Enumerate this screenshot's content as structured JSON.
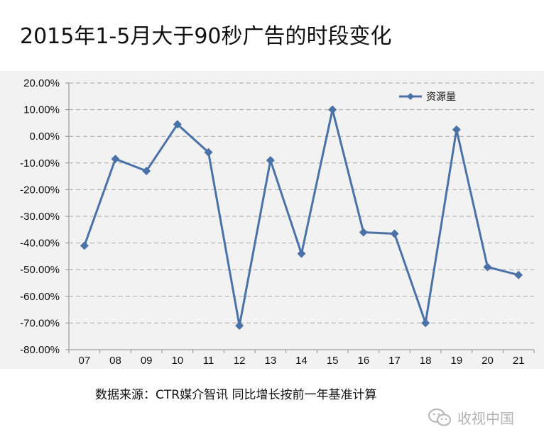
{
  "page": {
    "title": "2015年1-5月大于90秒广告的时段变化",
    "source_note": "数据来源：CTR媒介智讯   同比增长按前一年基准计算",
    "watermark": "收视中国"
  },
  "chart_data": {
    "type": "line",
    "title": "2015年1-5月大于90秒广告的时段变化",
    "xlabel": "",
    "ylabel": "",
    "categories": [
      "07",
      "08",
      "09",
      "10",
      "11",
      "12",
      "13",
      "14",
      "15",
      "16",
      "17",
      "18",
      "19",
      "20",
      "21"
    ],
    "series": [
      {
        "name": "资源量",
        "values": [
          -41.0,
          -8.5,
          -13.0,
          4.5,
          -6.0,
          -71.0,
          -9.0,
          -44.0,
          10.0,
          -36.0,
          -36.5,
          -70.0,
          2.5,
          -49.0,
          -52.0
        ],
        "color": "#4a72a8"
      }
    ],
    "ylim": [
      -80,
      20
    ],
    "yticks": [
      20,
      10,
      0,
      -10,
      -20,
      -30,
      -40,
      -50,
      -60,
      -70,
      -80
    ],
    "ytick_labels": [
      "20.00%",
      "10.00%",
      "0.00%",
      "-10.00%",
      "-20.00%",
      "-30.00%",
      "-40.00%",
      "-50.00%",
      "-60.00%",
      "-70.00%",
      "-80.00%"
    ],
    "grid": true,
    "legend_position": "top-right",
    "colors": {
      "plot_background": "#f2f2f2",
      "gridline": "#a6a6a6",
      "axis": "#8c8c8c"
    }
  }
}
